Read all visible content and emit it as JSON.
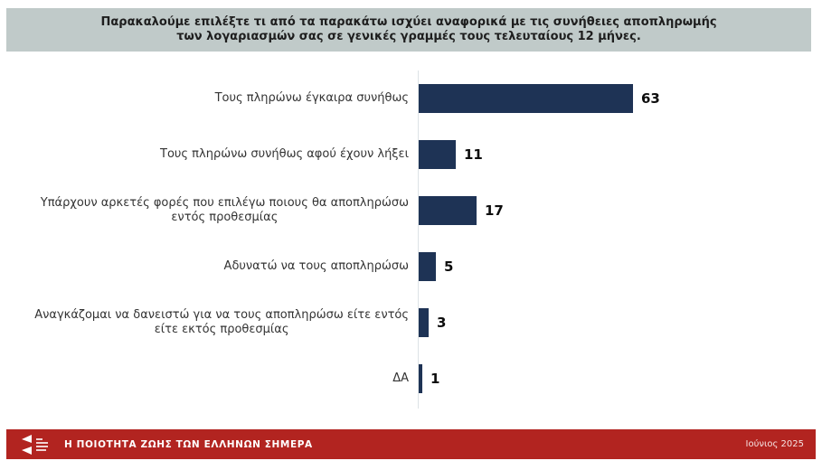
{
  "header": {
    "title_line1": "Παρακαλούμε επιλέξτε τι από τα παρακάτω ισχύει αναφορικά με τις συνήθειες αποπληρωμής",
    "title_line2": "των λογαριασμών σας σε γενικές γραμμές τους τελευταίους 12 μήνες."
  },
  "chart_data": {
    "type": "bar",
    "orientation": "horizontal",
    "title": "Παρακαλούμε επιλέξτε τι από τα παρακάτω ισχύει αναφορικά με τις συνήθειες αποπληρωμής των λογαριασμών σας σε γενικές γραμμές τους τελευταίους 12 μήνες.",
    "categories": [
      "Τους πληρώνω έγκαιρα συνήθως",
      "Τους πληρώνω συνήθως αφού έχουν λήξει",
      "Υπάρχουν αρκετές φορές που επιλέγω ποιους θα αποπληρώσω\nεντός προθεσμίας",
      "Αδυνατώ να τους αποπληρώσω",
      "Αναγκάζομαι να δανειστώ για να τους αποπληρώσω είτε εντός\nείτε εκτός προθεσμίας",
      "ΔΑ"
    ],
    "values": [
      63,
      11,
      17,
      5,
      3,
      1
    ],
    "xlabel": "",
    "ylabel": "",
    "xlim": [
      0,
      63
    ],
    "grid": false,
    "legend": "none",
    "value_labels": true,
    "bar_color": "#1e3355"
  },
  "footer": {
    "brand_text": "Η ΠΟΙΟΤΗΤΑ ΖΩΗΣ ΤΩΝ ΕΛΛΗΝΩΝ ΣΗΜΕΡΑ",
    "date_text": "Ιούνιος 2025",
    "logo_icon": "double-chevron-left-logo"
  },
  "colors": {
    "header_bg": "#c0cac9",
    "bar_fill": "#1e3355",
    "footer_bg": "#b22420",
    "axis_line": "#dde3e6",
    "label_text": "#333333",
    "value_text": "#0d0d0d"
  }
}
